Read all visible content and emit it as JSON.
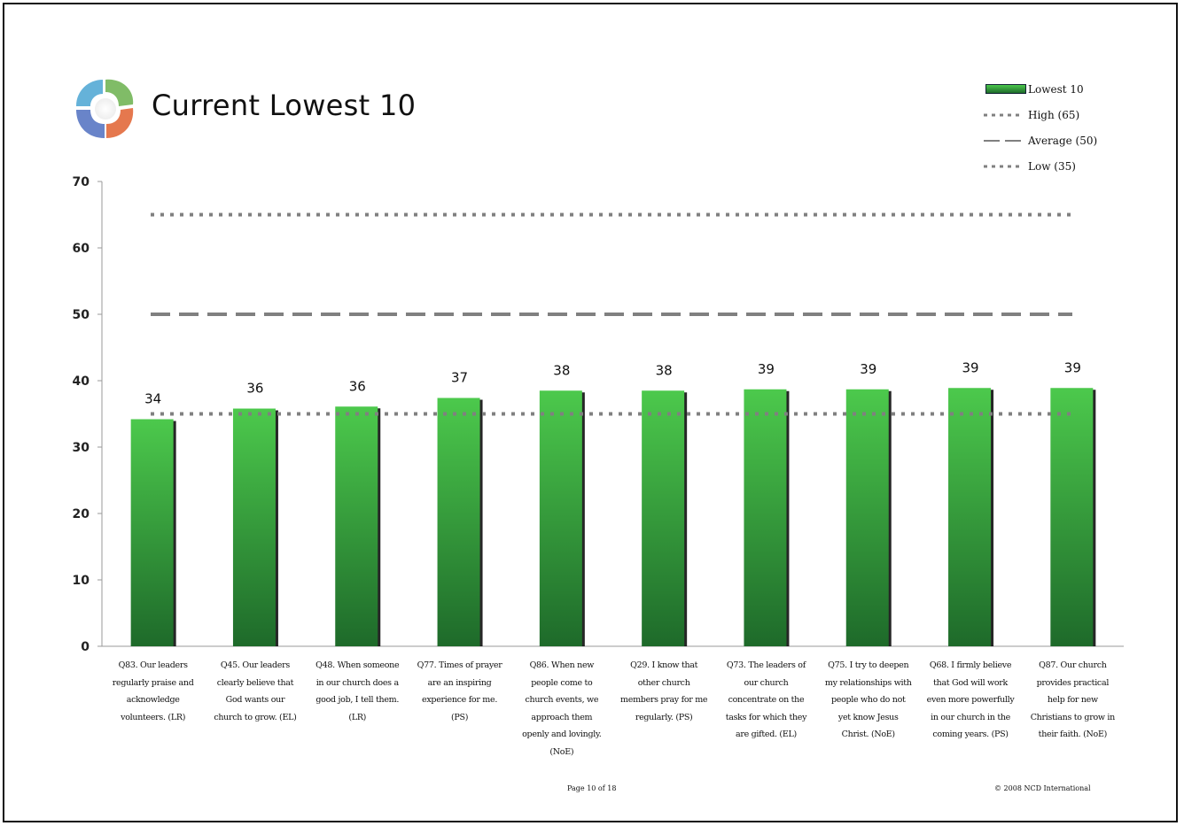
{
  "page": {
    "title": "Current Lowest 10",
    "footer_page": "Page 10 of 18",
    "footer_copyright": "© 2008 NCD International",
    "logo_name": "ncd-logo"
  },
  "legend": {
    "items": [
      {
        "label": "Lowest 10",
        "style": "bar"
      },
      {
        "label": "High (65)",
        "style": "dotted"
      },
      {
        "label": "Average (50)",
        "style": "dashed"
      },
      {
        "label": "Low (35)",
        "style": "dotted"
      }
    ]
  },
  "colors": {
    "bar_top": "#4cc94c",
    "bar_bottom": "#1e6a2a",
    "reference_line": "#808080",
    "axis": "#999999"
  },
  "chart_data": {
    "type": "bar",
    "categories": [
      "Q83. Our leaders regularly praise and acknowledge volunteers. (LR)",
      "Q45. Our leaders clearly believe that God wants our church to grow. (EL)",
      "Q48. When someone in our church does a good job, I tell them. (LR)",
      "Q77. Times of prayer are an inspiring experience for me. (PS)",
      "Q86. When new people come to church events, we approach them openly and lovingly. (NoE)",
      "Q29. I know that other church members pray for me regularly. (PS)",
      "Q73. The leaders of our church concentrate on the tasks for which they are gifted. (EL)",
      "Q75. I try to deepen my relationships with people who do not yet know Jesus Christ. (NoE)",
      "Q68. I firmly believe that God will work even more powerfully in our church in the coming years. (PS)",
      "Q87. Our church provides practical help for new Christians to grow in their faith. (NoE)"
    ],
    "category_lines": [
      [
        "Q83. Our leaders",
        "regularly praise and",
        "acknowledge",
        "volunteers. (LR)"
      ],
      [
        "Q45. Our leaders",
        "clearly believe that",
        "God wants our",
        "church to grow. (EL)"
      ],
      [
        "Q48. When someone",
        "in our church does a",
        "good job, I tell them.",
        "(LR)"
      ],
      [
        "Q77. Times of prayer",
        "are an inspiring",
        "experience for me.",
        "(PS)"
      ],
      [
        "Q86. When new",
        "people come to",
        "church events, we",
        "approach them",
        "openly and lovingly.",
        "(NoE)"
      ],
      [
        "Q29. I know that",
        "other church",
        "members pray for me",
        "regularly. (PS)"
      ],
      [
        "Q73. The leaders of",
        "our church",
        "concentrate on the",
        "tasks for which they",
        "are gifted. (EL)"
      ],
      [
        "Q75. I try to deepen",
        "my relationships with",
        "people who do not",
        "yet know Jesus",
        "Christ. (NoE)"
      ],
      [
        "Q68. I firmly believe",
        "that God will work",
        "even more powerfully",
        "in our church in the",
        "coming years. (PS)"
      ],
      [
        "Q87. Our church",
        "provides practical",
        "help for new",
        "Christians to grow in",
        "their faith. (NoE)"
      ]
    ],
    "series": [
      {
        "name": "Lowest 10",
        "values": [
          34.2,
          35.8,
          36.1,
          37.4,
          38.5,
          38.5,
          38.7,
          38.7,
          38.9,
          38.9
        ],
        "data_labels": [
          "34",
          "36",
          "36",
          "37",
          "38",
          "38",
          "39",
          "39",
          "39",
          "39"
        ]
      }
    ],
    "reference_lines": [
      {
        "name": "High (65)",
        "value": 65,
        "style": "dotted"
      },
      {
        "name": "Average (50)",
        "value": 50,
        "style": "dashed"
      },
      {
        "name": "Low (35)",
        "value": 35,
        "style": "dotted"
      }
    ],
    "ylim": [
      0,
      70
    ],
    "yticks": [
      "0",
      "10",
      "20",
      "30",
      "40",
      "50",
      "60",
      "70"
    ],
    "grid": false,
    "legend_position": "top-right"
  }
}
